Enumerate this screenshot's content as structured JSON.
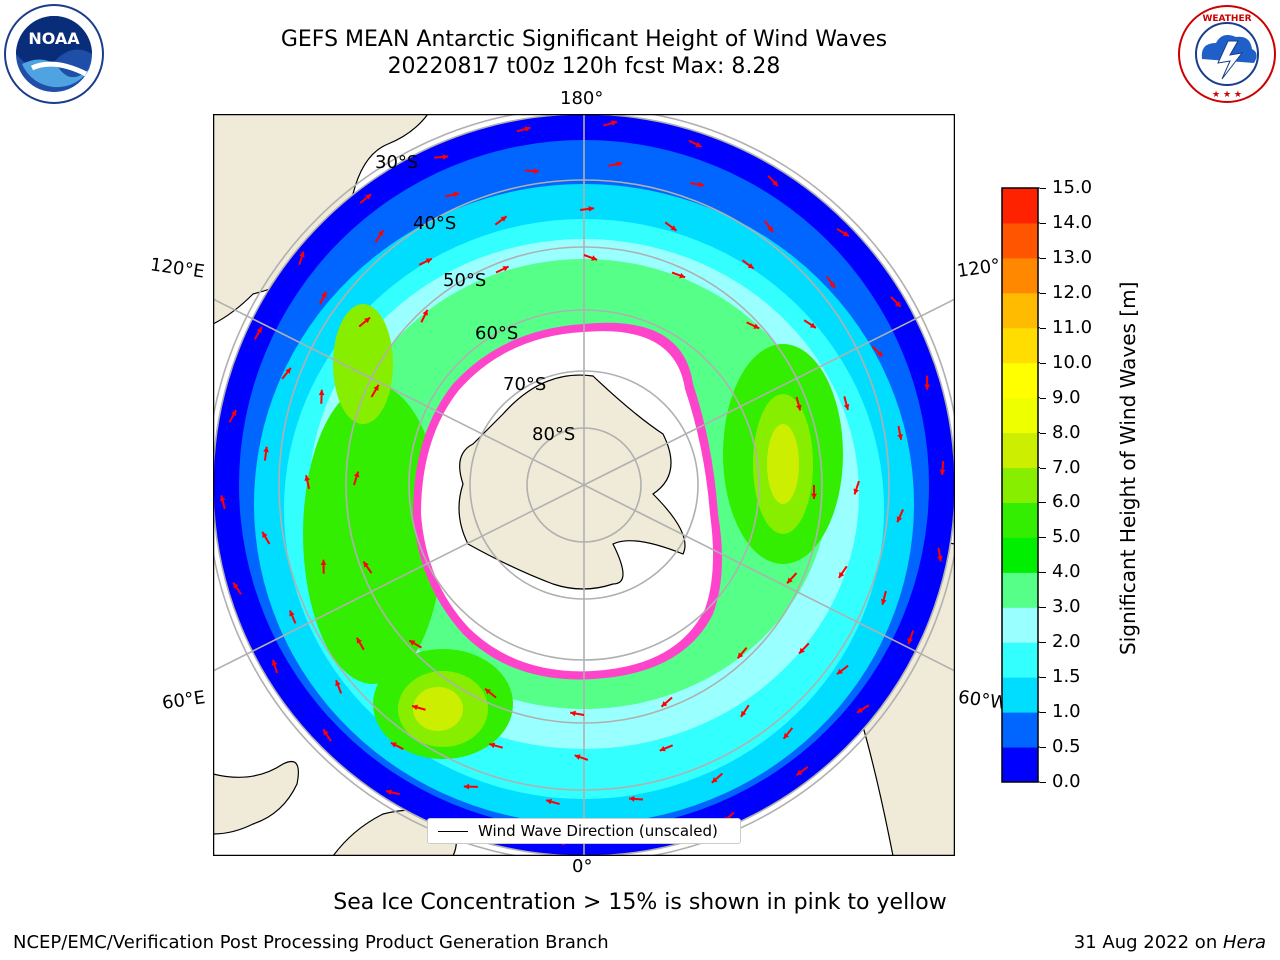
{
  "title": {
    "line1": "GEFS MEAN Antarctic Significant Height of Wind Waves",
    "line2": "20220817 t00z 120h fcst   Max: 8.28"
  },
  "logos": {
    "left": {
      "name": "noaa-logo",
      "text": "NOAA",
      "ring_text": "NATIONAL OCEANIC AND ATMOSPHERIC ADMINISTRATION • U.S. DEPARTMENT OF COMMERCE"
    },
    "right": {
      "name": "nws-logo",
      "ring_text": "NATIONAL WEATHER SERVICE"
    }
  },
  "map": {
    "projection": "south polar stereographic",
    "longitude_labels": {
      "top": "180°",
      "bottom": "0°",
      "upper_left": "120°E",
      "lower_left": "60°E",
      "upper_right": "120°",
      "lower_right": "60°W"
    },
    "latitude_labels": [
      "30°S",
      "40°S",
      "50°S",
      "60°S",
      "70°S",
      "80°S"
    ],
    "legend": "Wind Wave Direction (unscaled)",
    "max_value": 8.28,
    "colors": {
      "land": "#efebd8",
      "ice": "#ffffff",
      "sea_ice_edge": "#ff44cc",
      "arrow": "#ff0000",
      "grid": "#b0b0b0"
    }
  },
  "colorbar": {
    "label": "Significant Height of Wind Waves [m]",
    "ticks": [
      "0.0",
      "0.5",
      "1.0",
      "1.5",
      "2.0",
      "3.0",
      "4.0",
      "5.0",
      "6.0",
      "7.0",
      "8.0",
      "9.0",
      "10.0",
      "11.0",
      "12.0",
      "13.0",
      "14.0",
      "15.0"
    ],
    "colors": [
      "#0000ff",
      "#0066ff",
      "#00ddff",
      "#33ffff",
      "#99ffff",
      "#55ff88",
      "#00ee00",
      "#33ee00",
      "#88ee00",
      "#ccee00",
      "#eeff00",
      "#ffff00",
      "#ffdd00",
      "#ffbb00",
      "#ff8800",
      "#ff5500",
      "#ff2200"
    ]
  },
  "footer": {
    "note": "Sea Ice Concentration > 15% is shown in pink to yellow",
    "left": "NCEP/EMC/Verification Post Processing Product Generation Branch",
    "right_date": "31 Aug 2022 on ",
    "right_machine": "Hera"
  }
}
